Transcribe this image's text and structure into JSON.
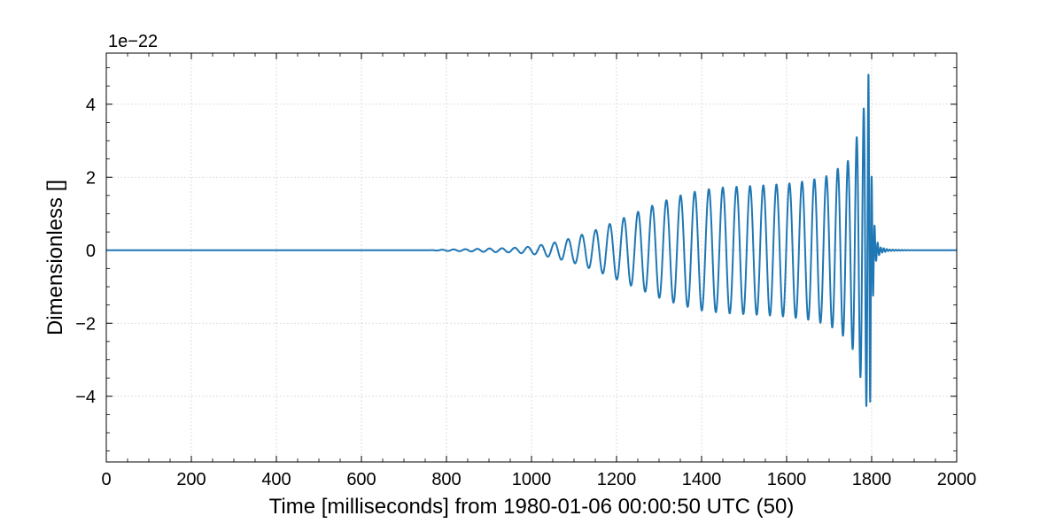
{
  "chart_data": {
    "type": "line",
    "title": "",
    "xlabel": "Time [milliseconds] from 1980-01-06 00:00:50 UTC (50)",
    "ylabel": "Dimensionless []",
    "y_offset_label": "1e−22",
    "xlim": [
      0,
      2000
    ],
    "ylim": [
      -5.8,
      5.4
    ],
    "x_ticks": [
      0,
      200,
      400,
      600,
      800,
      1000,
      1200,
      1400,
      1600,
      1800,
      2000
    ],
    "x_tick_labels": [
      "0",
      "200",
      "400",
      "600",
      "800",
      "1000",
      "1200",
      "1400",
      "1600",
      "1800",
      "2000"
    ],
    "y_ticks": [
      -4,
      -2,
      0,
      2,
      4
    ],
    "y_tick_labels": [
      "−4",
      "−2",
      "0",
      "2",
      "4"
    ],
    "grid": true,
    "series": [
      {
        "color": "#1f77b4",
        "x": [
          0,
          760,
          800,
          850,
          900,
          950,
          1000,
          1050,
          1100,
          1150,
          1200,
          1250,
          1300,
          1350,
          1400,
          1450,
          1500,
          1550,
          1600,
          1650,
          1700,
          1750,
          1770,
          1780,
          1788,
          1793,
          1797,
          1800,
          1805,
          1810,
          1820,
          1840,
          1900,
          2000
        ],
        "y": [
          0,
          0,
          0.02,
          0.03,
          0.05,
          0.06,
          0.1,
          0.2,
          0.35,
          0.55,
          0.8,
          1.05,
          1.3,
          1.5,
          1.65,
          1.72,
          1.75,
          1.78,
          1.82,
          1.9,
          2.05,
          2.5,
          3.3,
          3.8,
          4.3,
          4.88,
          4.0,
          2.0,
          0.9,
          0.3,
          0.08,
          0.02,
          0,
          0
        ],
        "envelope_min": [
          0,
          0,
          -0.02,
          -0.03,
          -0.05,
          -0.06,
          -0.1,
          -0.2,
          -0.35,
          -0.55,
          -0.8,
          -1.05,
          -1.3,
          -1.5,
          -1.65,
          -1.72,
          -1.75,
          -1.78,
          -1.82,
          -1.9,
          -2.05,
          -2.5,
          -3.3,
          -3.8,
          -4.3,
          -5.3,
          -4.0,
          -2.0,
          -0.9,
          -0.3,
          -0.08,
          -0.02,
          0,
          0
        ]
      }
    ],
    "cycles_per_ms": [
      [
        760,
        0.038
      ],
      [
        1000,
        0.032
      ],
      [
        1200,
        0.03
      ],
      [
        1400,
        0.03
      ],
      [
        1600,
        0.033
      ],
      [
        1700,
        0.036
      ],
      [
        1750,
        0.045
      ],
      [
        1780,
        0.065
      ],
      [
        1795,
        0.12
      ],
      [
        1800,
        0.15
      ],
      [
        1810,
        0.14
      ],
      [
        2000,
        0.14
      ]
    ]
  }
}
